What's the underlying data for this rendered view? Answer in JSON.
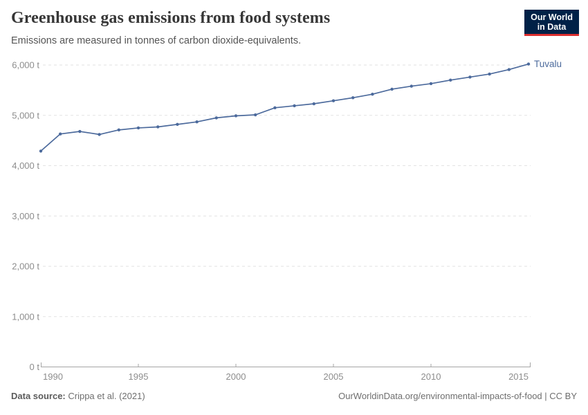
{
  "header": {
    "title": "Greenhouse gas emissions from food systems",
    "subtitle": "Emissions are measured in tonnes of carbon dioxide-equivalents.",
    "logo": {
      "line1": "Our World",
      "line2": "in Data",
      "bg_color": "#002147",
      "accent_color": "#dc2f2f"
    }
  },
  "chart_data": {
    "type": "line",
    "title": "Greenhouse gas emissions from food systems",
    "entity": "Tuvalu",
    "unit": "t",
    "ytick_suffix": " t",
    "x": [
      1990,
      1991,
      1992,
      1993,
      1994,
      1995,
      1996,
      1997,
      1998,
      1999,
      2000,
      2001,
      2002,
      2003,
      2004,
      2005,
      2006,
      2007,
      2008,
      2009,
      2010,
      2011,
      2012,
      2013,
      2014,
      2015
    ],
    "values": [
      4290,
      4630,
      4680,
      4620,
      4710,
      4750,
      4770,
      4820,
      4870,
      4950,
      4990,
      5010,
      5150,
      5190,
      5230,
      5290,
      5350,
      5420,
      5520,
      5580,
      5630,
      5700,
      5760,
      5820,
      5910,
      6020
    ],
    "xlim": [
      1990,
      2015
    ],
    "ylim": [
      0,
      6000
    ],
    "xticks": [
      1990,
      1995,
      2000,
      2005,
      2010,
      2015
    ],
    "yticks": [
      0,
      1000,
      2000,
      3000,
      4000,
      5000,
      6000
    ],
    "grid": true,
    "legend_position": "end-of-line-label",
    "line_color": "#4c6a9c",
    "grid_color": "#e2e2e2",
    "axis_color": "#a5a5a5",
    "axis_label_color": "#8d8d8d"
  },
  "footer": {
    "source_label": "Data source:",
    "source_value": " Crippa et al. (2021)",
    "credit": "OurWorldinData.org/environmental-impacts-of-food | CC BY"
  }
}
